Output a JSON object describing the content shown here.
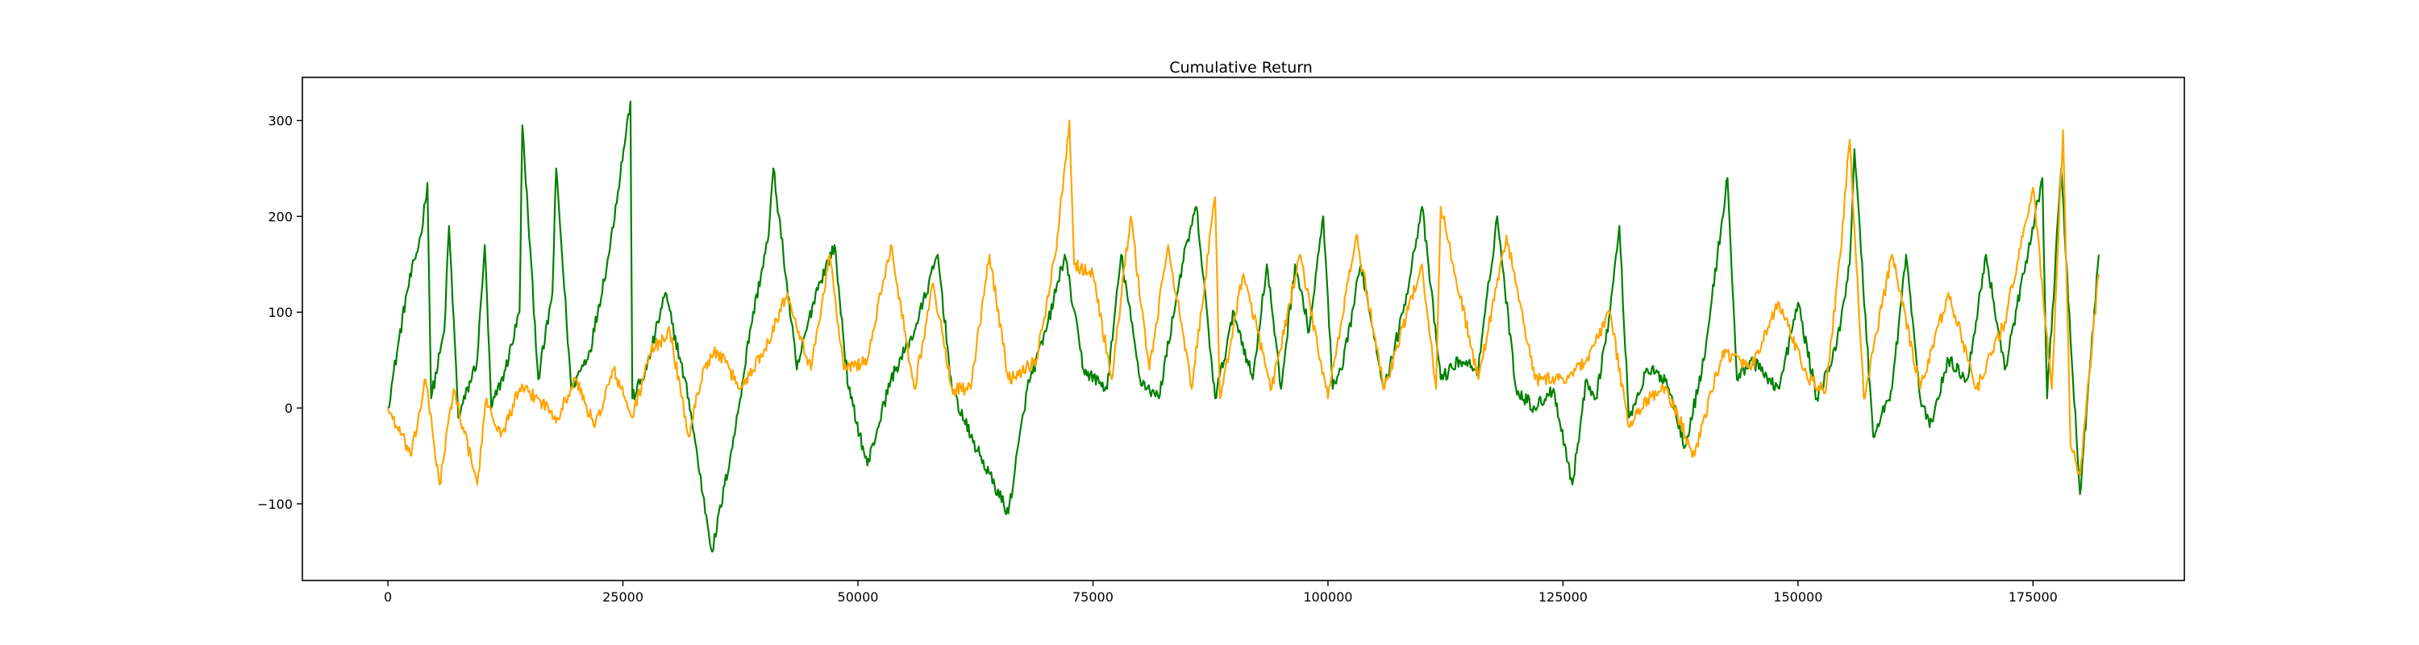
{
  "chart_data": {
    "type": "line",
    "title": "Cumulative Return",
    "xlabel": "",
    "ylabel": "",
    "xlim": [
      -9100,
      191100
    ],
    "ylim": [
      -180,
      345
    ],
    "x_ticks": [
      0,
      25000,
      50000,
      75000,
      100000,
      125000,
      150000,
      175000
    ],
    "x_tick_labels": [
      "0",
      "25000",
      "50000",
      "75000",
      "100000",
      "125000",
      "150000",
      "175000"
    ],
    "y_ticks": [
      -100,
      0,
      100,
      200,
      300
    ],
    "y_tick_labels": [
      "−100",
      "0",
      "100",
      "200",
      "300"
    ],
    "grid": false,
    "legend": "none",
    "series": [
      {
        "color": "#008000",
        "x": [
          0,
          500,
          2000,
          3500,
          4200,
          4600,
          6000,
          6500,
          7500,
          9500,
          10300,
          11000,
          12500,
          14000,
          14300,
          16000,
          17500,
          17900,
          19500,
          21500,
          23500,
          25800,
          26000,
          27500,
          29500,
          32000,
          33500,
          34500,
          37000,
          38500,
          40500,
          41000,
          43500,
          45500,
          47500,
          49000,
          51000,
          53500,
          56000,
          58500,
          60000,
          62000,
          66000,
          68000,
          70000,
          72000,
          74000,
          76500,
          78000,
          80000,
          82000,
          84500,
          86000,
          88000,
          90000,
          92000,
          93500,
          95000,
          96500,
          98000,
          99500,
          100500,
          101500,
          103500,
          106000,
          108000,
          110000,
          112000,
          114000,
          116000,
          118000,
          120000,
          122000,
          124000,
          126000,
          127500,
          128500,
          130000,
          131000,
          132000,
          134000,
          136000,
          138000,
          140000,
          142500,
          143500,
          145000,
          148000,
          150000,
          152000,
          154000,
          155500,
          156000,
          158000,
          160000,
          161500,
          163000,
          164000,
          166000,
          168000,
          170000,
          172000,
          174000,
          176000,
          176500,
          178000,
          179000,
          180000,
          182000
        ],
        "y": [
          0,
          30,
          120,
          180,
          235,
          10,
          80,
          190,
          -10,
          50,
          170,
          0,
          40,
          100,
          295,
          30,
          120,
          250,
          20,
          60,
          160,
          320,
          10,
          40,
          120,
          10,
          -90,
          -150,
          -20,
          80,
          180,
          250,
          40,
          120,
          170,
          20,
          -60,
          30,
          80,
          160,
          20,
          -30,
          -110,
          20,
          80,
          160,
          40,
          20,
          160,
          30,
          10,
          150,
          210,
          10,
          100,
          30,
          150,
          20,
          150,
          80,
          200,
          20,
          40,
          150,
          20,
          100,
          210,
          30,
          50,
          40,
          200,
          20,
          0,
          20,
          -80,
          30,
          10,
          100,
          190,
          -10,
          40,
          30,
          -40,
          50,
          240,
          30,
          50,
          20,
          110,
          10,
          60,
          150,
          270,
          -30,
          20,
          160,
          10,
          -20,
          50,
          30,
          160,
          40,
          140,
          240,
          10,
          250,
          70,
          -90,
          160
        ]
      },
      {
        "color": "#FFA500",
        "x": [
          0,
          1000,
          2500,
          4000,
          5500,
          7000,
          8000,
          9500,
          10500,
          12000,
          14000,
          16000,
          18000,
          20000,
          22000,
          24000,
          26000,
          28000,
          30000,
          32000,
          33500,
          35000,
          37500,
          40000,
          42500,
          45000,
          47000,
          48500,
          51000,
          53500,
          56000,
          58000,
          60000,
          62000,
          64000,
          66000,
          69000,
          71000,
          72500,
          73000,
          75000,
          77000,
          79000,
          81000,
          83000,
          85500,
          88000,
          88500,
          91000,
          94000,
          97000,
          100000,
          103000,
          106000,
          110000,
          111500,
          112000,
          116000,
          119000,
          122000,
          125000,
          127500,
          130000,
          132000,
          134000,
          136000,
          139000,
          142000,
          145000,
          148000,
          151000,
          153000,
          154500,
          155500,
          157000,
          160000,
          163000,
          166000,
          169000,
          172000,
          175000,
          177000,
          178200,
          179000,
          180000,
          182000
        ],
        "y": [
          0,
          -20,
          -50,
          30,
          -80,
          20,
          -20,
          -80,
          10,
          -30,
          20,
          10,
          -10,
          30,
          -20,
          40,
          -10,
          60,
          80,
          -30,
          40,
          60,
          20,
          60,
          120,
          40,
          160,
          40,
          50,
          170,
          20,
          130,
          20,
          20,
          160,
          30,
          50,
          160,
          300,
          150,
          140,
          30,
          200,
          40,
          170,
          20,
          220,
          10,
          140,
          20,
          160,
          10,
          180,
          20,
          150,
          20,
          210,
          30,
          180,
          30,
          30,
          50,
          100,
          -20,
          10,
          20,
          -50,
          60,
          40,
          110,
          30,
          20,
          160,
          280,
          10,
          160,
          20,
          120,
          20,
          90,
          230,
          20,
          290,
          -40,
          -70,
          140
        ]
      }
    ]
  }
}
